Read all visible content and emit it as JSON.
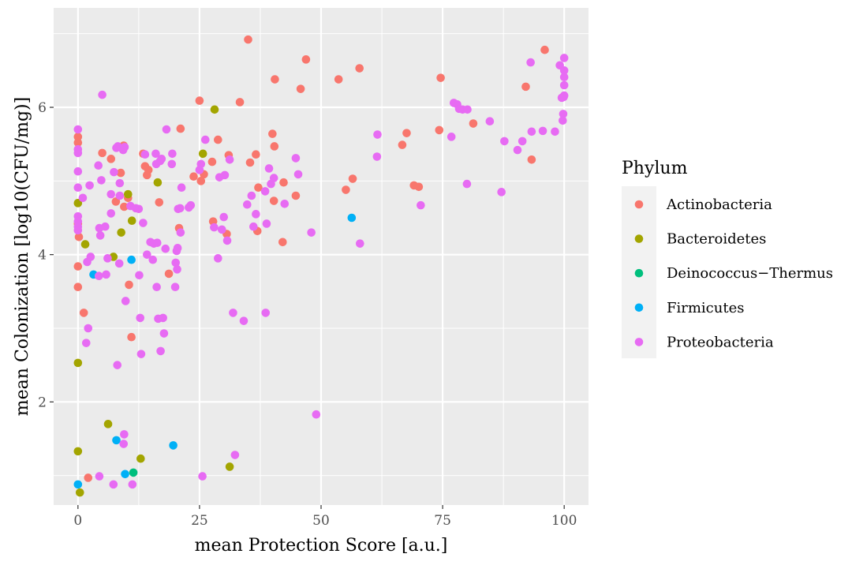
{
  "chart_data": {
    "type": "scatter",
    "xlabel": "mean Protection Score [a.u.]",
    "ylabel": "mean Colonization [log10(CFU/mg)]",
    "xlim": [
      -5,
      105
    ],
    "ylim": [
      0.6,
      7.35
    ],
    "xticks": [
      0,
      25,
      50,
      75,
      100
    ],
    "yticks": [
      2,
      4,
      6
    ],
    "grid": true,
    "legend": {
      "title": "Phylum",
      "position": "right"
    },
    "series": [
      {
        "name": "Actinobacteria",
        "color": "#F8766D",
        "points": [
          [
            35.0,
            6.92
          ],
          [
            46.9,
            6.65
          ],
          [
            40.5,
            6.38
          ],
          [
            53.6,
            6.38
          ],
          [
            57.9,
            6.53
          ],
          [
            45.8,
            6.25
          ],
          [
            74.6,
            6.4
          ],
          [
            96.0,
            6.78
          ],
          [
            92.1,
            6.28
          ],
          [
            93.3,
            5.29
          ],
          [
            25.0,
            6.09
          ],
          [
            33.3,
            6.07
          ],
          [
            21.1,
            5.71
          ],
          [
            28.8,
            5.56
          ],
          [
            31.0,
            5.35
          ],
          [
            35.4,
            5.25
          ],
          [
            36.6,
            5.36
          ],
          [
            40.0,
            5.64
          ],
          [
            40.4,
            5.47
          ],
          [
            44.8,
            4.8
          ],
          [
            42.3,
            4.98
          ],
          [
            40.3,
            4.73
          ],
          [
            37.1,
            4.91
          ],
          [
            36.9,
            4.32
          ],
          [
            42.1,
            4.17
          ],
          [
            55.1,
            4.88
          ],
          [
            56.5,
            5.03
          ],
          [
            66.7,
            5.49
          ],
          [
            67.6,
            5.65
          ],
          [
            69.1,
            4.94
          ],
          [
            70.1,
            4.92
          ],
          [
            74.3,
            5.69
          ],
          [
            81.3,
            5.78
          ],
          [
            30.6,
            4.28
          ],
          [
            27.8,
            4.45
          ],
          [
            25.9,
            5.09
          ],
          [
            25.3,
            5.0
          ],
          [
            27.6,
            5.26
          ],
          [
            23.8,
            5.06
          ],
          [
            16.7,
            4.71
          ],
          [
            13.4,
            5.37
          ],
          [
            14.5,
            5.15
          ],
          [
            13.8,
            5.2
          ],
          [
            14.2,
            5.08
          ],
          [
            8.8,
            5.11
          ],
          [
            9.4,
            5.48
          ],
          [
            5.0,
            5.38
          ],
          [
            6.8,
            5.3
          ],
          [
            7.8,
            4.72
          ],
          [
            9.5,
            4.65
          ],
          [
            10.3,
            4.77
          ],
          [
            10.5,
            3.59
          ],
          [
            11.0,
            2.88
          ],
          [
            18.7,
            3.74
          ],
          [
            20.8,
            4.36
          ],
          [
            0.0,
            5.6
          ],
          [
            0.0,
            5.52
          ],
          [
            0.0,
            4.42
          ],
          [
            0.2,
            4.24
          ],
          [
            0.0,
            3.84
          ],
          [
            0.0,
            3.56
          ],
          [
            1.2,
            3.21
          ],
          [
            2.1,
            0.97
          ]
        ]
      },
      {
        "name": "Bacteroidetes",
        "color": "#A3A500",
        "points": [
          [
            28.1,
            5.97
          ],
          [
            25.7,
            5.37
          ],
          [
            16.4,
            4.98
          ],
          [
            10.3,
            4.82
          ],
          [
            11.1,
            4.46
          ],
          [
            8.9,
            4.3
          ],
          [
            7.3,
            3.97
          ],
          [
            1.5,
            4.14
          ],
          [
            0.0,
            4.7
          ],
          [
            0.0,
            2.53
          ],
          [
            0.0,
            1.33
          ],
          [
            0.4,
            0.77
          ],
          [
            6.2,
            1.7
          ],
          [
            12.9,
            1.23
          ],
          [
            31.2,
            1.12
          ]
        ]
      },
      {
        "name": "Deinococcus−Thermus",
        "color": "#00BF7D",
        "points": [
          [
            11.4,
            1.04
          ]
        ]
      },
      {
        "name": "Firmicutes",
        "color": "#00B0F6",
        "points": [
          [
            56.3,
            4.5
          ],
          [
            11.0,
            3.93
          ],
          [
            3.2,
            3.73
          ],
          [
            7.9,
            1.48
          ],
          [
            19.6,
            1.41
          ],
          [
            9.7,
            1.02
          ],
          [
            0.0,
            0.88
          ]
        ]
      },
      {
        "name": "Proteobacteria",
        "color": "#E76BF3",
        "points": [
          [
            5.0,
            6.17
          ],
          [
            0.0,
            5.7
          ],
          [
            0.0,
            5.43
          ],
          [
            0.0,
            5.38
          ],
          [
            0.0,
            5.13
          ],
          [
            0.0,
            4.91
          ],
          [
            0.0,
            4.52
          ],
          [
            0.0,
            4.45
          ],
          [
            0.0,
            4.38
          ],
          [
            0.0,
            4.33
          ],
          [
            1.0,
            4.77
          ],
          [
            1.9,
            3.9
          ],
          [
            2.6,
            3.97
          ],
          [
            2.1,
            3.0
          ],
          [
            1.7,
            2.8
          ],
          [
            2.4,
            4.94
          ],
          [
            4.2,
            5.21
          ],
          [
            4.4,
            4.36
          ],
          [
            4.6,
            4.26
          ],
          [
            4.3,
            3.71
          ],
          [
            4.8,
            5.01
          ],
          [
            5.6,
            4.38
          ],
          [
            6.1,
            3.95
          ],
          [
            5.8,
            3.73
          ],
          [
            6.8,
            4.56
          ],
          [
            6.8,
            4.82
          ],
          [
            7.4,
            5.12
          ],
          [
            7.9,
            5.45
          ],
          [
            8.2,
            5.47
          ],
          [
            8.6,
            4.97
          ],
          [
            8.5,
            3.88
          ],
          [
            8.6,
            4.8
          ],
          [
            9.3,
            5.42
          ],
          [
            9.6,
            5.46
          ],
          [
            9.8,
            3.37
          ],
          [
            8.1,
            2.5
          ],
          [
            10.8,
            4.66
          ],
          [
            11.9,
            4.63
          ],
          [
            12.5,
            4.62
          ],
          [
            12.6,
            3.72
          ],
          [
            12.8,
            3.14
          ],
          [
            13.0,
            2.65
          ],
          [
            13.4,
            4.43
          ],
          [
            13.8,
            5.36
          ],
          [
            14.2,
            4.0
          ],
          [
            14.9,
            4.17
          ],
          [
            15.4,
            3.93
          ],
          [
            15.6,
            4.15
          ],
          [
            16.0,
            5.37
          ],
          [
            16.1,
            5.23
          ],
          [
            16.3,
            4.16
          ],
          [
            16.2,
            3.56
          ],
          [
            16.5,
            3.13
          ],
          [
            16.9,
            5.27
          ],
          [
            17.0,
            2.69
          ],
          [
            17.2,
            5.3
          ],
          [
            17.5,
            3.14
          ],
          [
            17.7,
            2.93
          ],
          [
            18.0,
            4.08
          ],
          [
            18.2,
            5.7
          ],
          [
            19.4,
            5.37
          ],
          [
            19.3,
            5.23
          ],
          [
            20.0,
            3.56
          ],
          [
            20.1,
            3.89
          ],
          [
            20.3,
            4.05
          ],
          [
            20.6,
            4.62
          ],
          [
            20.4,
            3.8
          ],
          [
            20.5,
            4.09
          ],
          [
            21.0,
            4.63
          ],
          [
            21.1,
            4.3
          ],
          [
            21.3,
            4.91
          ],
          [
            22.8,
            4.64
          ],
          [
            23.2,
            4.67
          ],
          [
            25.0,
            5.15
          ],
          [
            25.3,
            5.23
          ],
          [
            26.2,
            5.56
          ],
          [
            28.0,
            4.37
          ],
          [
            28.8,
            3.95
          ],
          [
            29.1,
            5.05
          ],
          [
            29.6,
            4.34
          ],
          [
            30.0,
            4.51
          ],
          [
            30.2,
            5.08
          ],
          [
            30.7,
            4.19
          ],
          [
            31.2,
            5.29
          ],
          [
            31.9,
            3.21
          ],
          [
            34.1,
            3.1
          ],
          [
            34.8,
            4.68
          ],
          [
            35.7,
            4.8
          ],
          [
            36.1,
            4.38
          ],
          [
            36.6,
            4.55
          ],
          [
            38.6,
            3.21
          ],
          [
            38.5,
            4.86
          ],
          [
            38.8,
            4.42
          ],
          [
            39.3,
            5.17
          ],
          [
            39.7,
            4.96
          ],
          [
            40.3,
            5.04
          ],
          [
            42.5,
            4.69
          ],
          [
            44.8,
            5.31
          ],
          [
            45.3,
            5.09
          ],
          [
            48.0,
            4.3
          ],
          [
            61.6,
            5.63
          ],
          [
            61.5,
            5.33
          ],
          [
            58.0,
            4.15
          ],
          [
            70.5,
            4.67
          ],
          [
            76.8,
            5.6
          ],
          [
            77.3,
            6.06
          ],
          [
            78.0,
            6.04
          ],
          [
            78.4,
            5.98
          ],
          [
            79.1,
            5.97
          ],
          [
            80.1,
            5.97
          ],
          [
            80.0,
            4.96
          ],
          [
            84.7,
            5.81
          ],
          [
            87.1,
            4.85
          ],
          [
            87.7,
            5.54
          ],
          [
            90.4,
            5.42
          ],
          [
            91.4,
            5.54
          ],
          [
            93.1,
            6.61
          ],
          [
            93.3,
            5.67
          ],
          [
            95.6,
            5.68
          ],
          [
            98.1,
            5.67
          ],
          [
            99.1,
            6.57
          ],
          [
            99.5,
            6.13
          ],
          [
            99.7,
            5.82
          ],
          [
            99.8,
            5.91
          ],
          [
            100.0,
            6.67
          ],
          [
            100.0,
            6.5
          ],
          [
            100.0,
            6.41
          ],
          [
            100.0,
            6.3
          ],
          [
            100.0,
            6.16
          ],
          [
            99.9,
            6.14
          ],
          [
            49.0,
            1.83
          ],
          [
            32.3,
            1.28
          ],
          [
            25.6,
            0.99
          ],
          [
            9.5,
            1.56
          ],
          [
            9.4,
            1.43
          ],
          [
            11.2,
            0.88
          ],
          [
            7.3,
            0.88
          ],
          [
            4.4,
            0.99
          ]
        ]
      }
    ]
  }
}
